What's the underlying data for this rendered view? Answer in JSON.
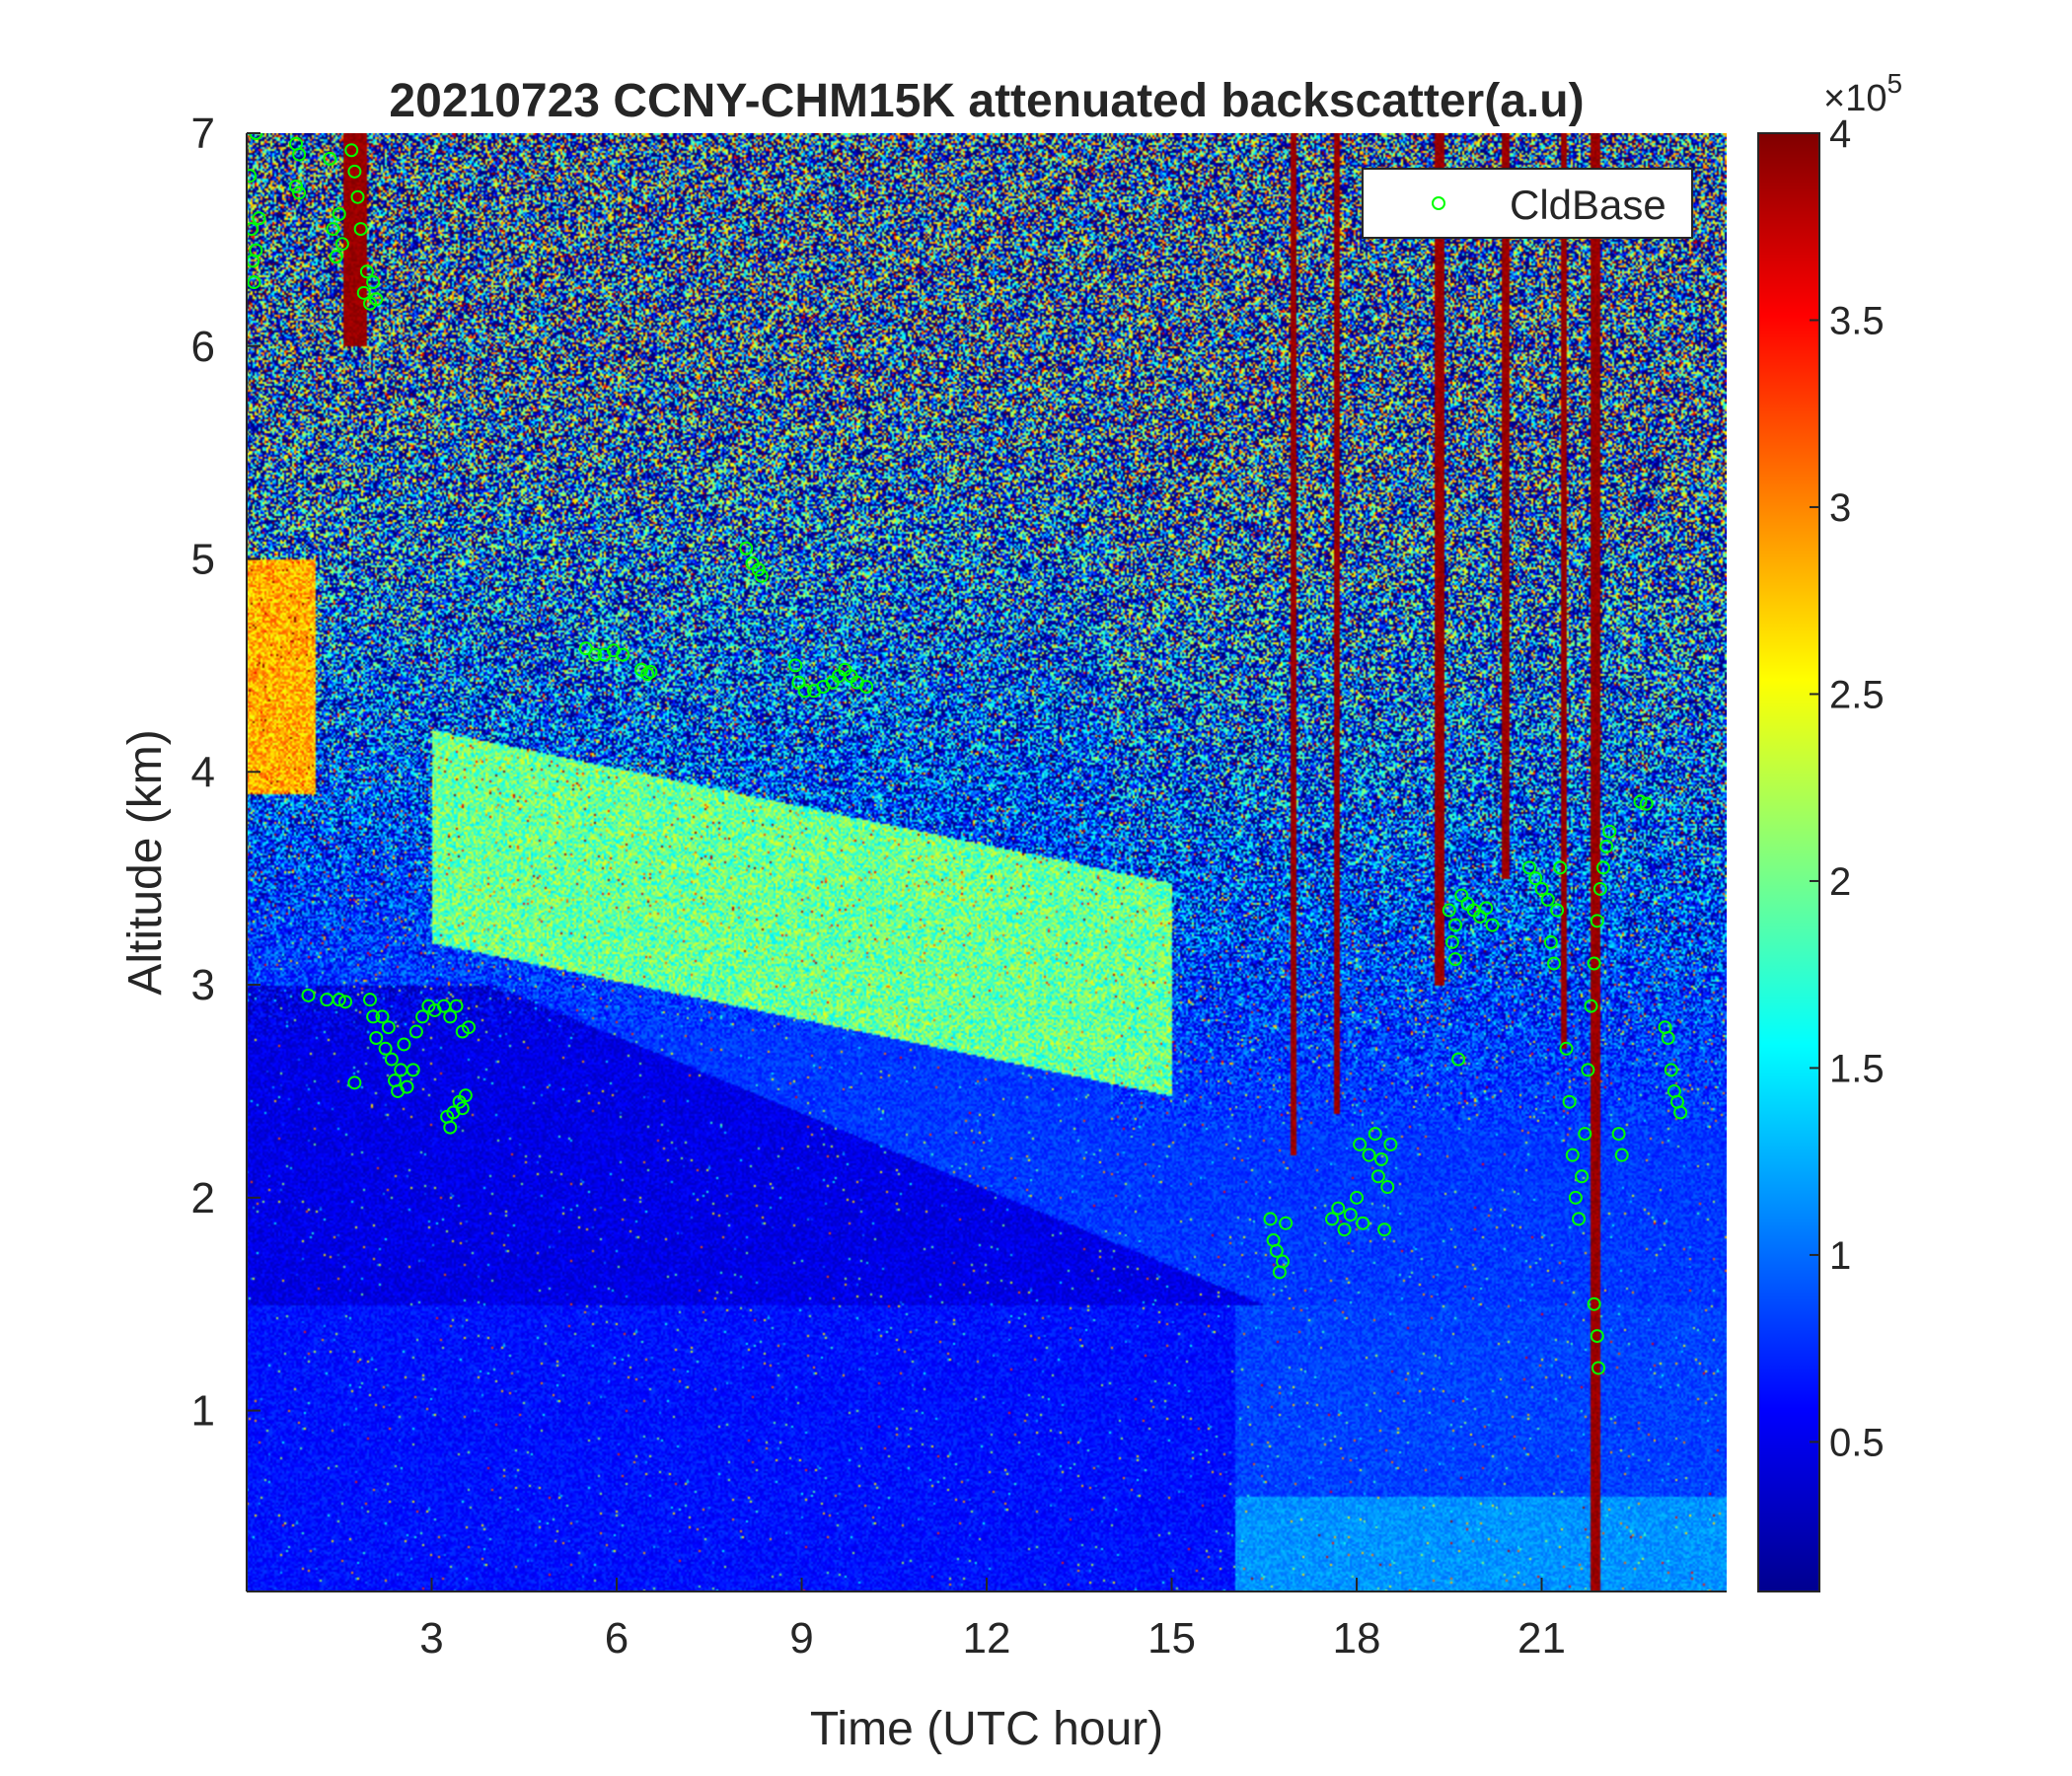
{
  "chart_data": {
    "type": "heatmap",
    "title": "20210723 CCNY-CHM15K attenuated backscatter(a.u)",
    "xlabel": "Time (UTC hour)",
    "ylabel": "Altitude (km)",
    "xlim": [
      0,
      24
    ],
    "ylim": [
      0.15,
      7
    ],
    "x_ticks": [
      3,
      6,
      9,
      12,
      15,
      18,
      21
    ],
    "x_tick_labels": [
      "3",
      "6",
      "9",
      "12",
      "15",
      "18",
      "21"
    ],
    "y_ticks": [
      1,
      2,
      3,
      4,
      5,
      6,
      7
    ],
    "y_tick_labels": [
      "1",
      "2",
      "3",
      "4",
      "5",
      "6",
      "7"
    ],
    "colormap": "jet",
    "colorbar": {
      "clim": [
        0.1,
        4
      ],
      "ticks": [
        0.5,
        1,
        1.5,
        2,
        2.5,
        3,
        3.5,
        4
      ],
      "tick_labels": [
        "0.5",
        "1",
        "1.5",
        "2",
        "2.5",
        "3",
        "3.5",
        "4"
      ],
      "exponent_prefix": "×10",
      "exponent": "5"
    },
    "legend": {
      "position": "top-right",
      "entries": [
        "CldBase"
      ]
    },
    "grid": false,
    "series": [
      {
        "name": "CldBase",
        "marker": "circle",
        "color": "#00ff00",
        "points": [
          [
            0.05,
            6.8
          ],
          [
            0.08,
            6.55
          ],
          [
            0.1,
            6.4
          ],
          [
            0.12,
            6.3
          ],
          [
            0.15,
            6.45
          ],
          [
            0.15,
            7.0
          ],
          [
            0.2,
            6.6
          ],
          [
            0.8,
            6.95
          ],
          [
            0.8,
            6.75
          ],
          [
            0.85,
            6.9
          ],
          [
            0.85,
            6.72
          ],
          [
            1.35,
            6.88
          ],
          [
            1.4,
            6.55
          ],
          [
            1.45,
            6.42
          ],
          [
            1.5,
            6.62
          ],
          [
            1.55,
            6.48
          ],
          [
            1.7,
            6.92
          ],
          [
            1.75,
            6.82
          ],
          [
            1.8,
            6.7
          ],
          [
            1.85,
            6.55
          ],
          [
            1.9,
            6.25
          ],
          [
            1.95,
            6.35
          ],
          [
            2.0,
            6.2
          ],
          [
            2.05,
            6.3
          ],
          [
            2.1,
            6.22
          ],
          [
            1.0,
            2.95
          ],
          [
            1.3,
            2.93
          ],
          [
            1.5,
            2.93
          ],
          [
            1.6,
            2.92
          ],
          [
            2.0,
            2.93
          ],
          [
            2.05,
            2.85
          ],
          [
            2.1,
            2.75
          ],
          [
            2.2,
            2.85
          ],
          [
            2.25,
            2.7
          ],
          [
            2.3,
            2.8
          ],
          [
            2.35,
            2.65
          ],
          [
            2.4,
            2.55
          ],
          [
            2.45,
            2.5
          ],
          [
            2.5,
            2.6
          ],
          [
            2.55,
            2.72
          ],
          [
            2.6,
            2.52
          ],
          [
            2.7,
            2.6
          ],
          [
            2.75,
            2.78
          ],
          [
            2.85,
            2.85
          ],
          [
            2.95,
            2.9
          ],
          [
            3.05,
            2.88
          ],
          [
            3.2,
            2.9
          ],
          [
            3.3,
            2.85
          ],
          [
            3.4,
            2.9
          ],
          [
            3.5,
            2.78
          ],
          [
            3.6,
            2.8
          ],
          [
            3.25,
            2.38
          ],
          [
            3.3,
            2.33
          ],
          [
            3.35,
            2.4
          ],
          [
            3.45,
            2.45
          ],
          [
            3.5,
            2.42
          ],
          [
            3.55,
            2.48
          ],
          [
            1.75,
            2.54
          ],
          [
            8.1,
            5.05
          ],
          [
            8.2,
            4.98
          ],
          [
            8.3,
            4.95
          ],
          [
            8.35,
            4.92
          ],
          [
            5.5,
            4.58
          ],
          [
            5.65,
            4.55
          ],
          [
            5.8,
            4.55
          ],
          [
            5.95,
            4.57
          ],
          [
            6.1,
            4.55
          ],
          [
            6.4,
            4.48
          ],
          [
            6.5,
            4.46
          ],
          [
            6.55,
            4.47
          ],
          [
            8.9,
            4.5
          ],
          [
            8.95,
            4.42
          ],
          [
            9.05,
            4.38
          ],
          [
            9.2,
            4.38
          ],
          [
            9.35,
            4.4
          ],
          [
            9.5,
            4.42
          ],
          [
            9.6,
            4.45
          ],
          [
            9.7,
            4.48
          ],
          [
            9.8,
            4.45
          ],
          [
            9.9,
            4.42
          ],
          [
            10.05,
            4.4
          ],
          [
            16.6,
            1.9
          ],
          [
            16.65,
            1.8
          ],
          [
            16.7,
            1.75
          ],
          [
            16.75,
            1.65
          ],
          [
            16.8,
            1.7
          ],
          [
            16.85,
            1.88
          ],
          [
            17.6,
            1.9
          ],
          [
            17.7,
            1.95
          ],
          [
            17.8,
            1.85
          ],
          [
            17.9,
            1.92
          ],
          [
            18.0,
            2.0
          ],
          [
            18.05,
            2.25
          ],
          [
            18.1,
            1.88
          ],
          [
            18.2,
            2.2
          ],
          [
            18.3,
            2.3
          ],
          [
            18.35,
            2.1
          ],
          [
            18.4,
            2.18
          ],
          [
            18.45,
            1.85
          ],
          [
            18.5,
            2.05
          ],
          [
            18.55,
            2.25
          ],
          [
            19.5,
            3.35
          ],
          [
            19.55,
            3.2
          ],
          [
            19.6,
            3.28
          ],
          [
            19.7,
            3.42
          ],
          [
            19.8,
            3.38
          ],
          [
            19.9,
            3.35
          ],
          [
            20.0,
            3.32
          ],
          [
            20.1,
            3.36
          ],
          [
            20.2,
            3.28
          ],
          [
            19.6,
            3.12
          ],
          [
            19.65,
            2.65
          ],
          [
            20.8,
            3.55
          ],
          [
            20.9,
            3.5
          ],
          [
            21.0,
            3.45
          ],
          [
            21.1,
            3.4
          ],
          [
            21.15,
            3.2
          ],
          [
            21.2,
            3.1
          ],
          [
            21.25,
            3.35
          ],
          [
            21.3,
            3.55
          ],
          [
            21.4,
            2.7
          ],
          [
            21.45,
            2.45
          ],
          [
            21.5,
            2.2
          ],
          [
            21.55,
            2.0
          ],
          [
            21.6,
            1.9
          ],
          [
            21.65,
            2.1
          ],
          [
            21.7,
            2.3
          ],
          [
            21.75,
            2.6
          ],
          [
            21.8,
            2.9
          ],
          [
            21.85,
            3.1
          ],
          [
            21.9,
            3.3
          ],
          [
            21.95,
            3.45
          ],
          [
            22.0,
            3.55
          ],
          [
            22.05,
            3.65
          ],
          [
            22.1,
            3.72
          ],
          [
            21.85,
            1.5
          ],
          [
            21.9,
            1.35
          ],
          [
            21.92,
            1.2
          ],
          [
            22.25,
            2.3
          ],
          [
            22.3,
            2.2
          ],
          [
            22.6,
            3.86
          ],
          [
            22.7,
            3.85
          ],
          [
            23.0,
            2.8
          ],
          [
            23.05,
            2.75
          ],
          [
            23.1,
            2.6
          ],
          [
            23.15,
            2.5
          ],
          [
            23.2,
            2.45
          ],
          [
            23.25,
            2.4
          ]
        ]
      }
    ]
  }
}
